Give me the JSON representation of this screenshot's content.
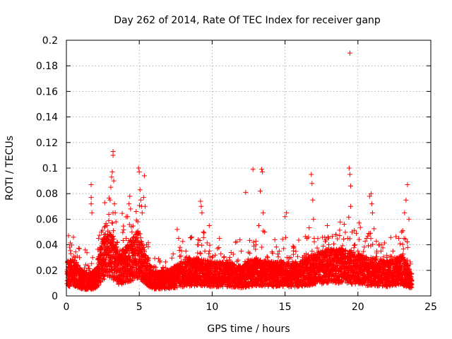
{
  "chart_data": {
    "type": "scatter",
    "title": "Day 262 of 2014, Rate Of TEC Index for receiver ganp",
    "xlabel": "GPS time / hours",
    "ylabel": "ROTI / TECUs",
    "xlim": [
      0,
      25
    ],
    "ylim": [
      0,
      0.2
    ],
    "xticks": [
      0,
      5,
      10,
      15,
      20,
      25
    ],
    "yticks": [
      0,
      0.02,
      0.04,
      0.06,
      0.08,
      0.1,
      0.12,
      0.14,
      0.16,
      0.18,
      0.2
    ],
    "xtick_labels": [
      "0",
      "5",
      "10",
      "15",
      "20",
      "25"
    ],
    "ytick_labels": [
      "0",
      "0.02",
      "0.04",
      "0.06",
      "0.08",
      "0.1",
      "0.12",
      "0.14",
      "0.16",
      "0.18",
      "0.2"
    ],
    "grid": true,
    "marker": "+",
    "color": "#ff0000",
    "series": [
      {
        "name": "ROTI",
        "points": [
          [
            0.1,
            0.012
          ],
          [
            0.2,
            0.018
          ],
          [
            0.3,
            0.026
          ],
          [
            0.3,
            0.033
          ],
          [
            0.4,
            0.02
          ],
          [
            0.5,
            0.031
          ],
          [
            0.6,
            0.008
          ],
          [
            0.7,
            0.012
          ],
          [
            0.8,
            0.022
          ],
          [
            0.9,
            0.03
          ],
          [
            1.0,
            0.015
          ],
          [
            1.1,
            0.01
          ],
          [
            1.2,
            0.018
          ],
          [
            1.3,
            0.036
          ],
          [
            1.4,
            0.02
          ],
          [
            1.5,
            0.012
          ],
          [
            1.6,
            0.009
          ],
          [
            1.7,
            0.087
          ],
          [
            1.7,
            0.077
          ],
          [
            1.7,
            0.072
          ],
          [
            1.75,
            0.065
          ],
          [
            1.8,
            0.03
          ],
          [
            1.9,
            0.015
          ],
          [
            2.0,
            0.008
          ],
          [
            2.1,
            0.012
          ],
          [
            2.2,
            0.045
          ],
          [
            2.3,
            0.038
          ],
          [
            2.4,
            0.05
          ],
          [
            2.5,
            0.02
          ],
          [
            2.6,
            0.048
          ],
          [
            2.7,
            0.035
          ],
          [
            2.8,
            0.055
          ],
          [
            2.9,
            0.025
          ],
          [
            3.0,
            0.075
          ],
          [
            3.05,
            0.085
          ],
          [
            3.1,
            0.093
          ],
          [
            3.15,
            0.097
          ],
          [
            3.2,
            0.113
          ],
          [
            3.2,
            0.11
          ],
          [
            3.25,
            0.09
          ],
          [
            3.3,
            0.072
          ],
          [
            3.35,
            0.065
          ],
          [
            3.4,
            0.058
          ],
          [
            3.5,
            0.042
          ],
          [
            3.6,
            0.03
          ],
          [
            3.7,
            0.02
          ],
          [
            3.8,
            0.025
          ],
          [
            3.9,
            0.018
          ],
          [
            4.0,
            0.03
          ],
          [
            4.1,
            0.045
          ],
          [
            4.2,
            0.062
          ],
          [
            4.3,
            0.072
          ],
          [
            4.35,
            0.078
          ],
          [
            4.4,
            0.068
          ],
          [
            4.5,
            0.05
          ],
          [
            4.6,
            0.035
          ],
          [
            4.7,
            0.028
          ],
          [
            4.8,
            0.04
          ],
          [
            4.9,
            0.058
          ],
          [
            4.95,
            0.1
          ],
          [
            5.0,
            0.097
          ],
          [
            5.05,
            0.083
          ],
          [
            5.1,
            0.075
          ],
          [
            5.15,
            0.07
          ],
          [
            5.2,
            0.065
          ],
          [
            5.3,
            0.077
          ],
          [
            5.35,
            0.094
          ],
          [
            5.4,
            0.07
          ],
          [
            5.5,
            0.04
          ],
          [
            5.6,
            0.03
          ],
          [
            5.8,
            0.02
          ],
          [
            6.0,
            0.012
          ],
          [
            6.2,
            0.015
          ],
          [
            6.4,
            0.01
          ],
          [
            6.6,
            0.018
          ],
          [
            6.8,
            0.022
          ],
          [
            7.0,
            0.015
          ],
          [
            7.2,
            0.02
          ],
          [
            7.4,
            0.012
          ],
          [
            7.6,
            0.052
          ],
          [
            7.7,
            0.045
          ],
          [
            7.8,
            0.038
          ],
          [
            8.0,
            0.02
          ],
          [
            8.2,
            0.035
          ],
          [
            8.4,
            0.03
          ],
          [
            8.6,
            0.046
          ],
          [
            8.8,
            0.018
          ],
          [
            9.0,
            0.04
          ],
          [
            9.2,
            0.074
          ],
          [
            9.25,
            0.07
          ],
          [
            9.3,
            0.065
          ],
          [
            9.4,
            0.05
          ],
          [
            9.5,
            0.035
          ],
          [
            9.8,
            0.055
          ],
          [
            10.0,
            0.03
          ],
          [
            10.2,
            0.02
          ],
          [
            10.5,
            0.045
          ],
          [
            10.8,
            0.03
          ],
          [
            11.0,
            0.028
          ],
          [
            11.3,
            0.034
          ],
          [
            11.6,
            0.042
          ],
          [
            12.0,
            0.035
          ],
          [
            12.3,
            0.081
          ],
          [
            12.6,
            0.028
          ],
          [
            12.8,
            0.099
          ],
          [
            13.0,
            0.04
          ],
          [
            13.2,
            0.055
          ],
          [
            13.3,
            0.082
          ],
          [
            13.4,
            0.099
          ],
          [
            13.45,
            0.097
          ],
          [
            13.5,
            0.065
          ],
          [
            13.6,
            0.05
          ],
          [
            13.8,
            0.03
          ],
          [
            14.0,
            0.025
          ],
          [
            14.3,
            0.044
          ],
          [
            14.6,
            0.035
          ],
          [
            15.0,
            0.062
          ],
          [
            15.1,
            0.065
          ],
          [
            15.4,
            0.03
          ],
          [
            15.8,
            0.025
          ],
          [
            16.2,
            0.03
          ],
          [
            16.5,
            0.045
          ],
          [
            16.8,
            0.095
          ],
          [
            16.85,
            0.088
          ],
          [
            16.9,
            0.075
          ],
          [
            16.95,
            0.06
          ],
          [
            17.0,
            0.045
          ],
          [
            17.3,
            0.035
          ],
          [
            17.6,
            0.03
          ],
          [
            17.9,
            0.055
          ],
          [
            18.2,
            0.025
          ],
          [
            18.5,
            0.048
          ],
          [
            18.8,
            0.03
          ],
          [
            19.1,
            0.035
          ],
          [
            19.3,
            0.045
          ],
          [
            19.4,
            0.1
          ],
          [
            19.45,
            0.095
          ],
          [
            19.5,
            0.086
          ],
          [
            19.5,
            0.07
          ],
          [
            19.45,
            0.19
          ],
          [
            19.6,
            0.05
          ],
          [
            19.8,
            0.04
          ],
          [
            20.0,
            0.035
          ],
          [
            20.3,
            0.03
          ],
          [
            20.6,
            0.045
          ],
          [
            20.8,
            0.078
          ],
          [
            20.9,
            0.08
          ],
          [
            20.95,
            0.072
          ],
          [
            21.0,
            0.065
          ],
          [
            21.3,
            0.035
          ],
          [
            21.6,
            0.04
          ],
          [
            22.0,
            0.03
          ],
          [
            22.4,
            0.035
          ],
          [
            22.8,
            0.045
          ],
          [
            23.0,
            0.05
          ],
          [
            23.2,
            0.065
          ],
          [
            23.3,
            0.075
          ],
          [
            23.4,
            0.087
          ],
          [
            23.5,
            0.06
          ],
          [
            23.6,
            0.025
          ],
          [
            23.7,
            0.012
          ]
        ],
        "baseline": [
          [
            0,
            0.018
          ],
          [
            0.5,
            0.02
          ],
          [
            1,
            0.014
          ],
          [
            1.5,
            0.012
          ],
          [
            2,
            0.014
          ],
          [
            2.5,
            0.03
          ],
          [
            3,
            0.035
          ],
          [
            3.3,
            0.03
          ],
          [
            3.6,
            0.022
          ],
          [
            4,
            0.025
          ],
          [
            4.5,
            0.03
          ],
          [
            5,
            0.035
          ],
          [
            5.5,
            0.02
          ],
          [
            6,
            0.013
          ],
          [
            7,
            0.014
          ],
          [
            8,
            0.018
          ],
          [
            9,
            0.02
          ],
          [
            10,
            0.018
          ],
          [
            11,
            0.018
          ],
          [
            12,
            0.016
          ],
          [
            13,
            0.02
          ],
          [
            14,
            0.018
          ],
          [
            15,
            0.018
          ],
          [
            16,
            0.018
          ],
          [
            17,
            0.022
          ],
          [
            18,
            0.025
          ],
          [
            19,
            0.025
          ],
          [
            20,
            0.022
          ],
          [
            21,
            0.02
          ],
          [
            22,
            0.018
          ],
          [
            23,
            0.022
          ],
          [
            23.7,
            0.012
          ]
        ]
      }
    ]
  }
}
